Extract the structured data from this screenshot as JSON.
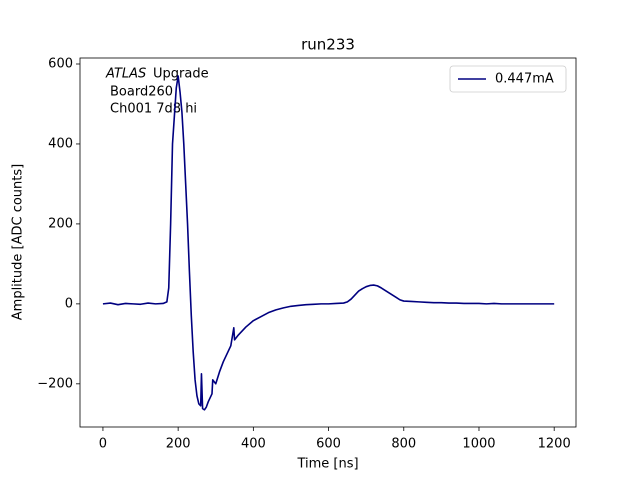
{
  "chart_data": {
    "type": "line",
    "title": "run233",
    "x_label": "Time [ns]",
    "y_label": "Amplitude [ADC counts]",
    "annotation": {
      "experiment": "ATLAS",
      "label": "Upgrade",
      "board": "Board260",
      "channel": "Ch001 7d8 hi"
    },
    "legend": "upper right",
    "xlim": [
      -61,
      1258
    ],
    "ylim": [
      -308,
      615
    ],
    "xticks": [
      0,
      200,
      400,
      600,
      800,
      1000,
      1200
    ],
    "yticks": [
      {
        "value": -200,
        "label": "−200"
      },
      0,
      200,
      400,
      600
    ],
    "series": [
      {
        "name": "0.447mA",
        "color": "#000080",
        "x": [
          0,
          20,
          40,
          60,
          80,
          100,
          120,
          140,
          160,
          170,
          175,
          180,
          185,
          190,
          195,
          200,
          205,
          210,
          215,
          220,
          225,
          230,
          235,
          240,
          245,
          250,
          255,
          260,
          262,
          265,
          270,
          275,
          280,
          290,
          292,
          300,
          310,
          320,
          330,
          340,
          348,
          350,
          360,
          380,
          400,
          420,
          440,
          460,
          480,
          500,
          520,
          540,
          560,
          580,
          600,
          620,
          640,
          650,
          660,
          670,
          680,
          690,
          700,
          710,
          720,
          730,
          740,
          750,
          760,
          770,
          780,
          790,
          800,
          820,
          840,
          860,
          880,
          900,
          920,
          940,
          960,
          980,
          1000,
          1020,
          1040,
          1060,
          1080,
          1100,
          1120,
          1140,
          1160,
          1180,
          1200
        ],
        "values": [
          0,
          2,
          -2,
          1,
          0,
          -1,
          2,
          0,
          1,
          5,
          40,
          200,
          400,
          470,
          540,
          570,
          530,
          480,
          400,
          300,
          200,
          80,
          -30,
          -120,
          -190,
          -230,
          -250,
          -255,
          -175,
          -262,
          -265,
          -258,
          -245,
          -225,
          -190,
          -200,
          -170,
          -145,
          -125,
          -105,
          -60,
          -90,
          -78,
          -58,
          -42,
          -32,
          -22,
          -15,
          -10,
          -6,
          -4,
          -2,
          -1,
          0,
          0,
          1,
          2,
          5,
          12,
          22,
          32,
          38,
          43,
          46,
          47,
          45,
          40,
          34,
          28,
          22,
          16,
          10,
          7,
          6,
          5,
          4,
          3,
          3,
          2,
          2,
          1,
          1,
          1,
          0,
          1,
          0,
          0,
          0,
          0,
          0,
          0,
          0,
          0
        ]
      }
    ]
  }
}
